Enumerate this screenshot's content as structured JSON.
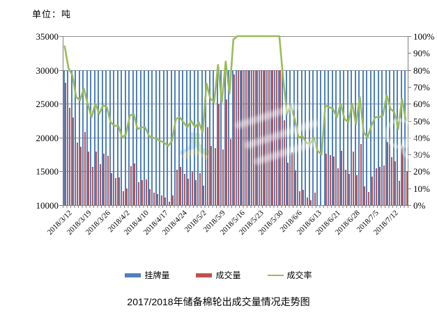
{
  "unit_label": "单位：吨",
  "title": "2017/2018年储备棉轮出成交量情况走势图",
  "colors": {
    "listed": "#4F81BD",
    "deal": "#C0504D",
    "rate": "#9BBB59",
    "grid": "#8C8C8C",
    "axis": "#808080",
    "text": "#000000"
  },
  "chart_data": {
    "type": "bar",
    "subtype": "clustered daily bars with line overlay on secondary percent axis",
    "title": "2017/2018年储备棉轮出成交量情况走势图",
    "x_tick_labels": [
      "2018/3/12",
      "2018/3/19",
      "2018/3/26",
      "2018/4/2",
      "2018/4/10",
      "2018/4/17",
      "2018/4/24",
      "2018/5/2",
      "2018/5/9",
      "2018/5/16",
      "2018/5/23",
      "2018/5/30",
      "2018/6/6",
      "2018/6/13",
      "2018/6/21",
      "2018/6/28",
      "2018/7/5",
      "2018/7/12"
    ],
    "days_per_tick": 5,
    "left_axis": {
      "unit": "吨",
      "min": 10000,
      "max": 35000,
      "tick_labels": [
        "35000",
        "30000",
        "25000",
        "20000",
        "15000",
        "10000"
      ]
    },
    "right_axis": {
      "min": 0,
      "max": 100,
      "tick_labels": [
        "100%",
        "90%",
        "80%",
        "70%",
        "60%",
        "50%",
        "40%",
        "30%",
        "20%",
        "10%",
        "0%"
      ]
    },
    "gridlines": "horizontal",
    "legend_position": "bottom",
    "series": [
      {
        "name": "挂牌量",
        "type": "bar",
        "axis": "left",
        "color": "#4F81BD",
        "count": 90,
        "constant_value": 30000
      },
      {
        "name": "成交量",
        "type": "bar",
        "axis": "left",
        "color": "#C0504D",
        "values": [
          28100,
          24400,
          23000,
          19300,
          18600,
          20800,
          17900,
          15700,
          17900,
          16100,
          17600,
          17300,
          14700,
          14000,
          14100,
          12100,
          12500,
          15800,
          16200,
          13400,
          13700,
          13800,
          12400,
          11900,
          11600,
          11400,
          11100,
          10500,
          11400,
          15300,
          15700,
          14600,
          13900,
          14900,
          13700,
          14700,
          12900,
          21500,
          18800,
          18400,
          24900,
          18200,
          25600,
          19800,
          29300,
          30000,
          30000,
          30000,
          30000,
          30000,
          30000,
          30000,
          30000,
          30000,
          30000,
          30000,
          30000,
          22600,
          16300,
          17800,
          15200,
          12100,
          12300,
          11100,
          10700,
          11900,
          9500,
          8900,
          17600,
          17400,
          17200,
          15500,
          18000,
          15300,
          14600,
          17900,
          14400,
          19100,
          12800,
          12000,
          14200,
          15500,
          15700,
          15900,
          19400,
          17100,
          16500,
          13600,
          18800,
          15000
        ]
      },
      {
        "name": "成交率",
        "type": "line",
        "axis": "right",
        "color": "#9BBB59",
        "values_percent": [
          94,
          81,
          77,
          64,
          62,
          69,
          60,
          52,
          60,
          54,
          59,
          58,
          49,
          47,
          47,
          40,
          42,
          53,
          54,
          45,
          46,
          46,
          41,
          40,
          39,
          38,
          37,
          35,
          38,
          51,
          52,
          49,
          46,
          50,
          46,
          49,
          43,
          72,
          63,
          61,
          83,
          61,
          85,
          66,
          98,
          100,
          100,
          100,
          100,
          100,
          100,
          100,
          100,
          100,
          100,
          100,
          100,
          75,
          54,
          59,
          51,
          40,
          41,
          37,
          36,
          40,
          32,
          30,
          59,
          58,
          57,
          52,
          60,
          51,
          49,
          60,
          48,
          64,
          43,
          40,
          47,
          52,
          52,
          53,
          65,
          57,
          55,
          45,
          63,
          50
        ]
      }
    ]
  }
}
